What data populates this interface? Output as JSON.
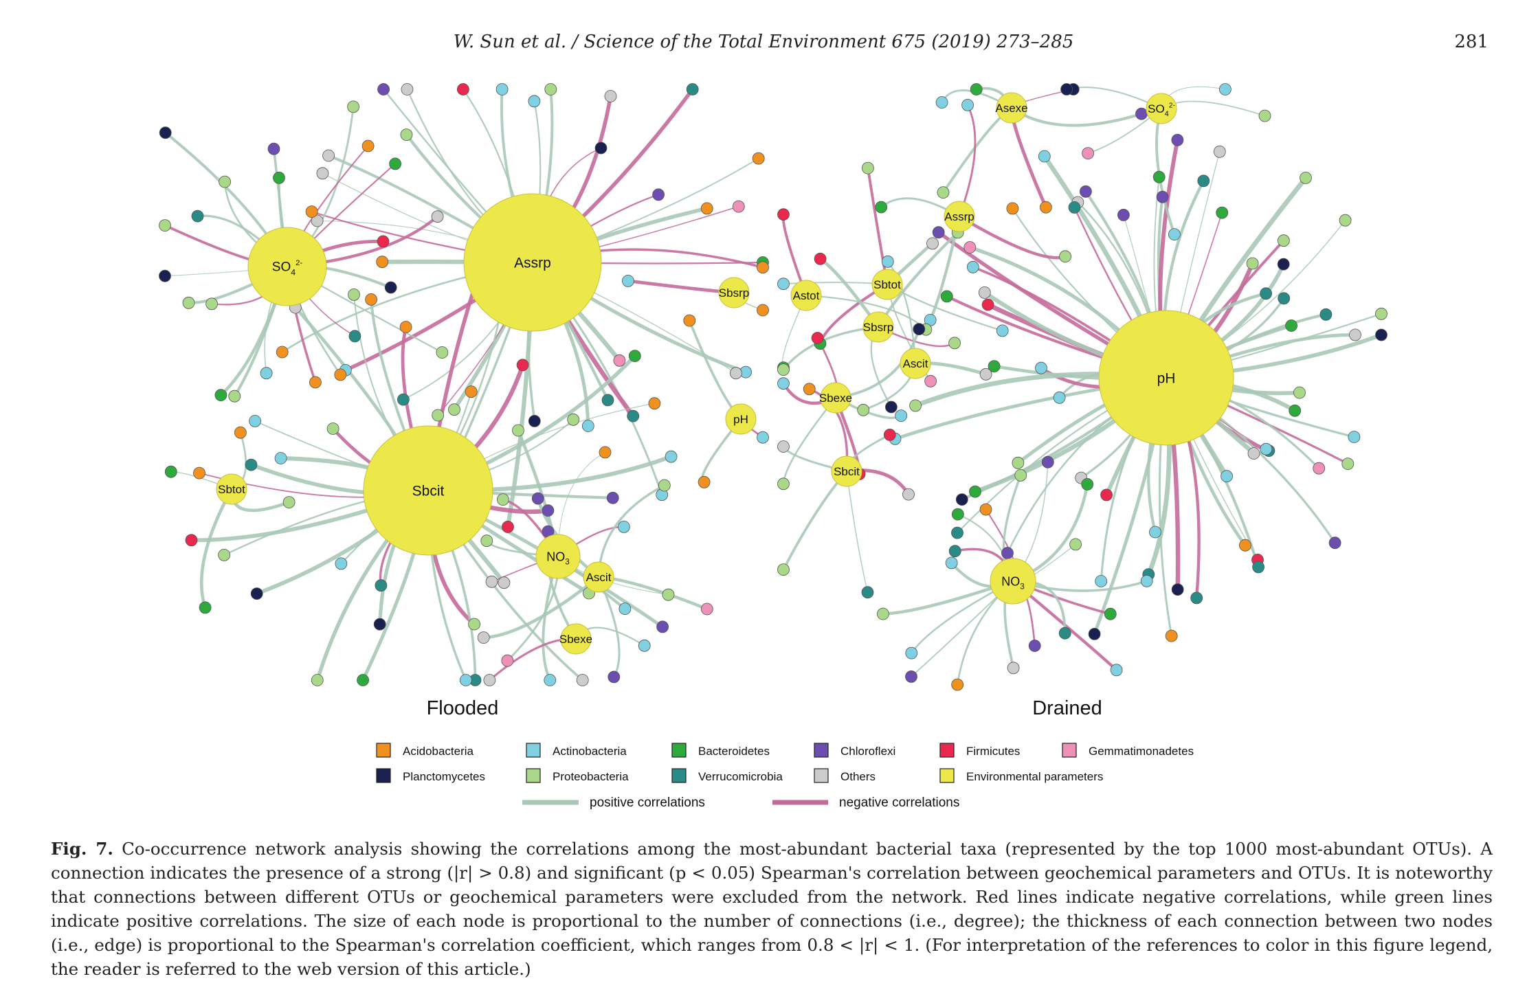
{
  "header": {
    "running_head": "W. Sun et al. / Science of the Total Environment 675 (2019) 273–285",
    "page_number": "281"
  },
  "figure": {
    "panels": [
      {
        "title": "Flooded",
        "hubs": [
          {
            "label": "Assrp",
            "size": "large"
          },
          {
            "label": "Sbcit",
            "size": "large"
          },
          {
            "label": "SO4 2-",
            "label_main": "SO",
            "label_sub": "4",
            "label_sup": "2-",
            "size": "medium"
          },
          {
            "label": "NO3",
            "label_main": "NO",
            "label_sub": "3",
            "size": "small"
          },
          {
            "label": "Ascit",
            "size": "tiny"
          },
          {
            "label": "Sbtot",
            "size": "tiny"
          },
          {
            "label": "Sbsrp",
            "size": "tiny"
          },
          {
            "label": "pH",
            "size": "tiny"
          },
          {
            "label": "Sbexe",
            "size": "tiny"
          }
        ]
      },
      {
        "title": "Drained",
        "hubs": [
          {
            "label": "pH",
            "size": "large"
          },
          {
            "label": "NO3",
            "label_main": "NO",
            "label_sub": "3",
            "size": "small"
          },
          {
            "label": "Asexe",
            "size": "tiny"
          },
          {
            "label": "SO4 2-",
            "label_main": "SO",
            "label_sub": "4",
            "label_sup": "2-",
            "size": "tiny"
          },
          {
            "label": "Assrp",
            "size": "tiny"
          },
          {
            "label": "Sbtot",
            "size": "tiny"
          },
          {
            "label": "Astot",
            "size": "tiny"
          },
          {
            "label": "Sbsrp",
            "size": "tiny"
          },
          {
            "label": "Ascit",
            "size": "tiny"
          },
          {
            "label": "Sbexe",
            "size": "tiny"
          },
          {
            "label": "Sbcit",
            "size": "tiny"
          }
        ]
      }
    ],
    "legend": {
      "taxa": [
        {
          "name": "Acidobacteria",
          "color": "#f0901e"
        },
        {
          "name": "Actinobacteria",
          "color": "#7fd0e0"
        },
        {
          "name": "Bacteroidetes",
          "color": "#2eaa3c"
        },
        {
          "name": "Chloroflexi",
          "color": "#6c4db0"
        },
        {
          "name": "Firmicutes",
          "color": "#e8284c"
        },
        {
          "name": "Gemmatimonadetes",
          "color": "#ef90b8"
        },
        {
          "name": "Planctomycetes",
          "color": "#1a2050"
        },
        {
          "name": "Proteobacteria",
          "color": "#a8d888"
        },
        {
          "name": "Verrucomicrobia",
          "color": "#2a8a86"
        },
        {
          "name": "Others",
          "color": "#cccccc"
        },
        {
          "name": "Environmental parameters",
          "color": "#ede84a"
        }
      ],
      "edges": [
        {
          "name": "positive correlations",
          "color": "#a9c8b6"
        },
        {
          "name": "negative correlations",
          "color": "#c46a9a"
        }
      ]
    }
  },
  "caption": {
    "label": "Fig. 7.",
    "text": " Co-occurrence network analysis showing the correlations among the most-abundant bacterial taxa (represented by the top 1000 most-abundant OTUs). A connection indicates the presence of a strong (|r| > 0.8) and significant (p < 0.05) Spearman's correlation between geochemical parameters and OTUs. It is noteworthy that connections between different OTUs or geochemical parameters were excluded from the network. Red lines indicate negative correlations, while green lines indicate positive correlations. The size of each node is proportional to the number of connections (i.e., degree); the thickness of each connection between two nodes (i.e., edge) is proportional to the Spearman's correlation coefficient, which ranges from 0.8 < |r| < 1. (For interpretation of the references to color in this figure legend, the reader is referred to the web version of this article.)"
  }
}
